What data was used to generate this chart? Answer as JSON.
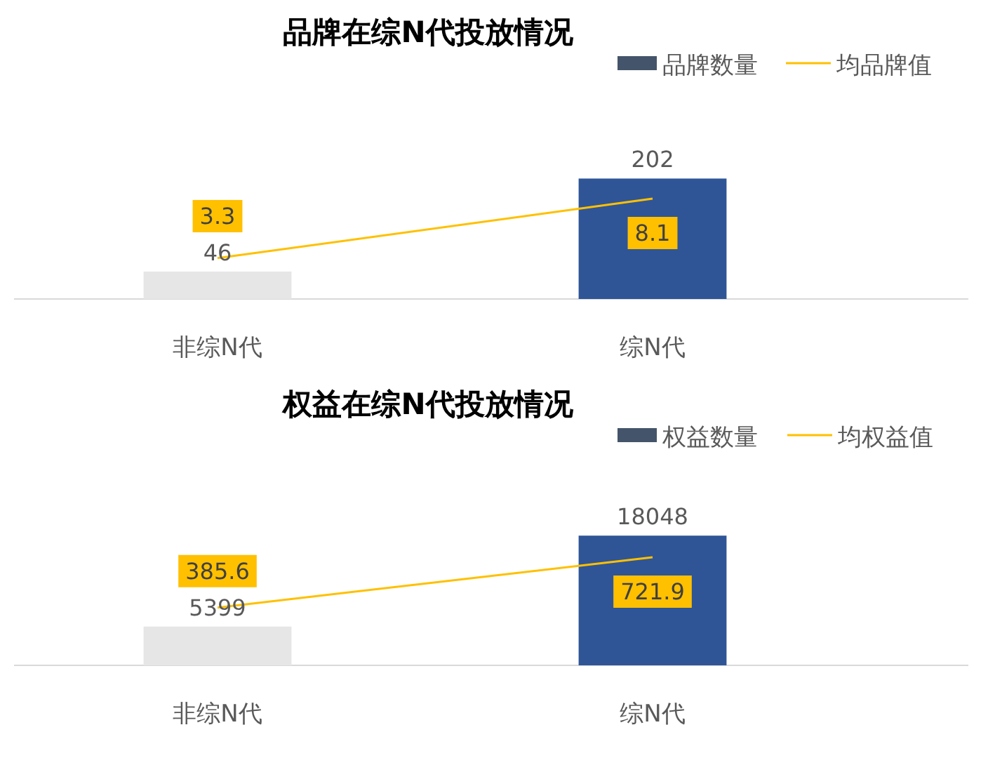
{
  "chart_data": [
    {
      "type": "bar",
      "title": "品牌在综N代投放情况",
      "categories": [
        "非综N代",
        "综N代"
      ],
      "series": [
        {
          "name": "品牌数量",
          "color": "#44546a",
          "colors": [
            "#e7e6e6",
            "#2f5597"
          ],
          "values": [
            46,
            202
          ]
        },
        {
          "name": "均品牌值",
          "type": "line",
          "axis": "y2",
          "color": "#ffc000",
          "values": [
            3.3,
            8.1
          ]
        }
      ],
      "tick_labels": "x",
      "data_labels": true,
      "legend": "top right"
    },
    {
      "type": "bar",
      "title": "权益在综N代投放情况",
      "categories": [
        "非综N代",
        "综N代"
      ],
      "series": [
        {
          "name": "权益数量",
          "color": "#44546a",
          "colors": [
            "#e7e6e6",
            "#2f5597"
          ],
          "values": [
            5399,
            18048
          ]
        },
        {
          "name": "均权益值",
          "type": "line",
          "axis": "y2",
          "color": "#ffc000",
          "values": [
            385.6,
            721.9
          ]
        }
      ],
      "tick_labels": "x",
      "data_labels": true,
      "legend": "top right"
    }
  ]
}
